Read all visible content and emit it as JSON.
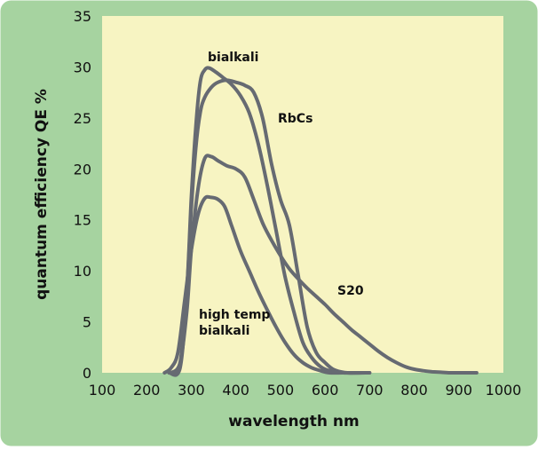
{
  "colors": {
    "frame": "#a6d3a0",
    "plot_bg": "#f7f4c2",
    "curve": "#666a72",
    "text": "#111111"
  },
  "chart_data": {
    "type": "line",
    "title": "",
    "xlabel": "wavelength  nm",
    "ylabel": "quantum efficiency  QE %",
    "xlim": [
      100,
      1000
    ],
    "ylim": [
      0,
      35
    ],
    "xticks": [
      100,
      200,
      300,
      400,
      500,
      600,
      700,
      800,
      900,
      1000
    ],
    "yticks": [
      0,
      5,
      10,
      15,
      20,
      25,
      30,
      35
    ],
    "grid": false,
    "legend": "none",
    "series": [
      {
        "name": "bialkali",
        "x": [
          250,
          275,
          290,
          300,
          310,
          320,
          330,
          340,
          355,
          370,
          390,
          410,
          430,
          450,
          470,
          490,
          510,
          530,
          550,
          570,
          590,
          610,
          640,
          670,
          700
        ],
        "y": [
          0,
          0.5,
          8,
          17,
          24,
          28.5,
          29.7,
          29.9,
          29.5,
          29,
          28.3,
          27.2,
          25.5,
          22.5,
          18.5,
          14,
          9.5,
          6,
          3,
          1.5,
          0.6,
          0.2,
          0,
          0,
          0
        ]
      },
      {
        "name": "RbCs",
        "x": [
          255,
          275,
          290,
          300,
          310,
          320,
          330,
          345,
          360,
          380,
          400,
          420,
          440,
          460,
          480,
          500,
          520,
          540,
          560,
          580,
          600,
          620,
          650,
          690
        ],
        "y": [
          0,
          1,
          8,
          16,
          22,
          25.5,
          27,
          28,
          28.5,
          28.7,
          28.5,
          28.2,
          27.5,
          25,
          20.5,
          17,
          14.5,
          9.5,
          4.5,
          2,
          1,
          0.3,
          0,
          0
        ]
      },
      {
        "name": "S20",
        "x": [
          255,
          275,
          290,
          300,
          315,
          330,
          345,
          360,
          380,
          400,
          420,
          440,
          460,
          480,
          500,
          520,
          540,
          560,
          580,
          600,
          620,
          640,
          660,
          680,
          700,
          720,
          740,
          760,
          780,
          800,
          820,
          840,
          860,
          880,
          900,
          920,
          940
        ],
        "y": [
          0,
          1,
          6,
          12,
          18,
          21,
          21.2,
          20.8,
          20.3,
          20,
          19.2,
          17,
          14.7,
          13,
          11.5,
          10.2,
          9.2,
          8.3,
          7.5,
          6.7,
          5.8,
          5,
          4.2,
          3.5,
          2.8,
          2.1,
          1.5,
          1,
          0.6,
          0.35,
          0.2,
          0.1,
          0.05,
          0,
          0,
          0,
          0
        ]
      },
      {
        "name": "high temp bialkali",
        "x": [
          240,
          255,
          270,
          285,
          300,
          315,
          330,
          345,
          360,
          375,
          390,
          410,
          430,
          450,
          470,
          490,
          510,
          530,
          550,
          570,
          590,
          610,
          640,
          670,
          700
        ],
        "y": [
          0,
          0.5,
          2,
          7,
          12,
          15.5,
          17.1,
          17.2,
          17,
          16.3,
          14.5,
          12,
          10,
          8,
          6.2,
          4.5,
          3,
          1.8,
          1,
          0.5,
          0.2,
          0,
          0,
          0,
          0
        ]
      }
    ],
    "annotations": [
      {
        "text": "bialkali"
      },
      {
        "text": "RbCs"
      },
      {
        "text": "S20"
      },
      {
        "text": "high temp"
      },
      {
        "text": "bialkali"
      }
    ]
  }
}
